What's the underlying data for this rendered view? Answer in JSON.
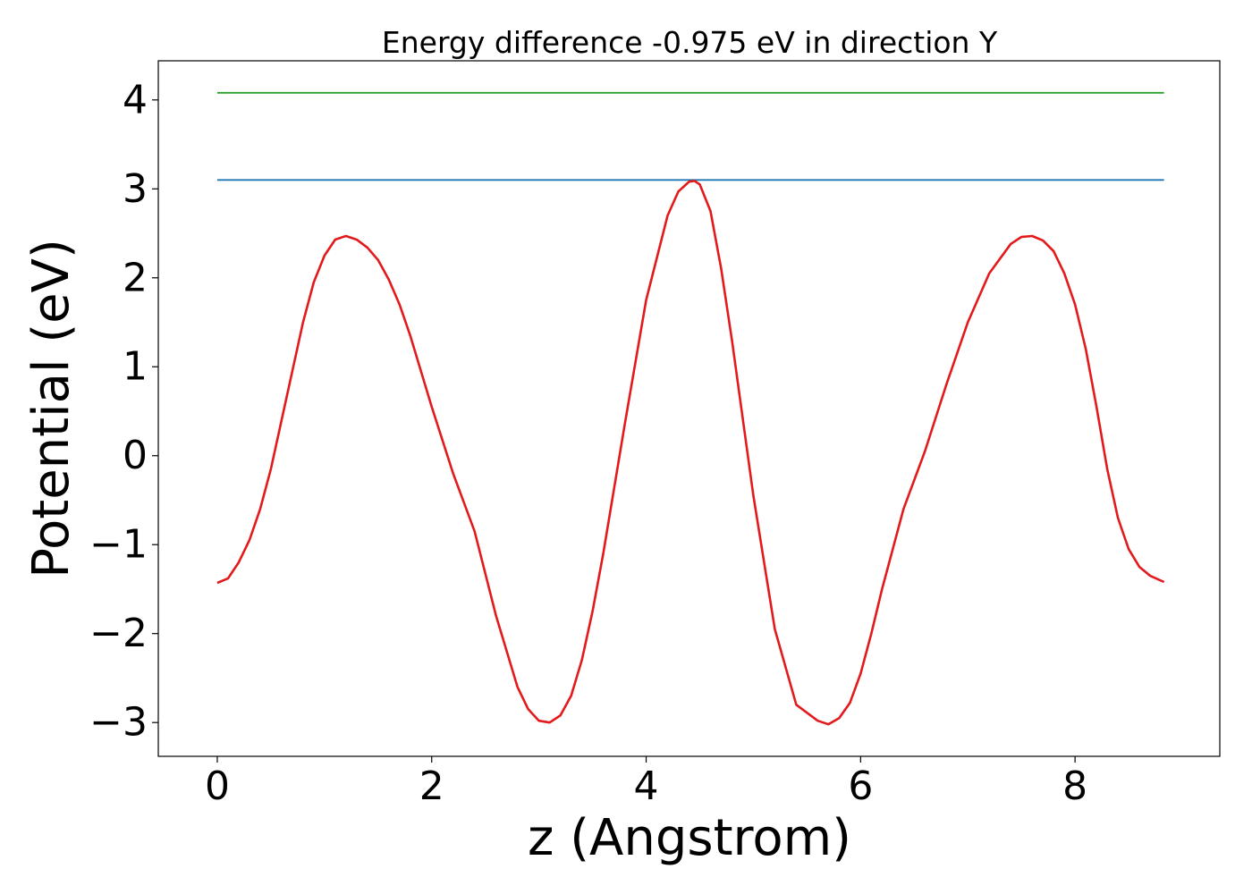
{
  "chart_data": {
    "type": "line",
    "title": "Energy difference -0.975 eV in direction Y",
    "xlabel": "z (Angstrom)",
    "ylabel": "Potential (eV)",
    "xlim": [
      -0.55,
      9.35
    ],
    "ylim": [
      -3.38,
      4.44
    ],
    "xticks": [
      0,
      2,
      4,
      6,
      8
    ],
    "xtick_labels": [
      "0",
      "2",
      "4",
      "6",
      "8"
    ],
    "yticks": [
      -3,
      -2,
      -1,
      0,
      1,
      2,
      3,
      4
    ],
    "ytick_labels": [
      "−3",
      "−2",
      "−1",
      "0",
      "1",
      "2",
      "3",
      "4"
    ],
    "grid": false,
    "series": [
      {
        "color": "#2ca02c",
        "x": [
          0,
          8.83
        ],
        "y": [
          4.08,
          4.08
        ]
      },
      {
        "color": "#1f77b4",
        "x": [
          0,
          8.83
        ],
        "y": [
          3.1,
          3.1
        ]
      },
      {
        "color": "#e31a1c",
        "x": [
          0,
          0.1,
          0.2,
          0.3,
          0.4,
          0.5,
          0.6,
          0.7,
          0.8,
          0.9,
          1.0,
          1.1,
          1.2,
          1.3,
          1.4,
          1.5,
          1.6,
          1.7,
          1.8,
          1.9,
          2.0,
          2.2,
          2.4,
          2.6,
          2.8,
          2.9,
          3.0,
          3.1,
          3.2,
          3.3,
          3.4,
          3.5,
          3.6,
          3.8,
          4.0,
          4.2,
          4.3,
          4.4,
          4.45,
          4.5,
          4.6,
          4.7,
          4.8,
          5.0,
          5.2,
          5.4,
          5.6,
          5.7,
          5.8,
          5.9,
          6.0,
          6.1,
          6.2,
          6.4,
          6.6,
          6.8,
          7.0,
          7.2,
          7.4,
          7.5,
          7.6,
          7.7,
          7.8,
          7.9,
          8.0,
          8.1,
          8.2,
          8.3,
          8.4,
          8.5,
          8.6,
          8.7,
          8.83
        ],
        "y": [
          -1.43,
          -1.38,
          -1.2,
          -0.95,
          -0.6,
          -0.15,
          0.4,
          0.95,
          1.5,
          1.95,
          2.25,
          2.43,
          2.47,
          2.43,
          2.34,
          2.2,
          1.98,
          1.7,
          1.35,
          0.95,
          0.55,
          -0.2,
          -0.85,
          -1.8,
          -2.6,
          -2.85,
          -2.98,
          -3.0,
          -2.92,
          -2.7,
          -2.3,
          -1.75,
          -1.1,
          0.35,
          1.75,
          2.7,
          2.97,
          3.08,
          3.09,
          3.05,
          2.75,
          2.1,
          1.3,
          -0.45,
          -1.95,
          -2.8,
          -2.98,
          -3.02,
          -2.95,
          -2.78,
          -2.45,
          -2.0,
          -1.5,
          -0.6,
          0.05,
          0.8,
          1.5,
          2.05,
          2.38,
          2.46,
          2.47,
          2.42,
          2.3,
          2.05,
          1.7,
          1.2,
          0.55,
          -0.15,
          -0.7,
          -1.05,
          -1.25,
          -1.35,
          -1.42
        ]
      }
    ]
  }
}
